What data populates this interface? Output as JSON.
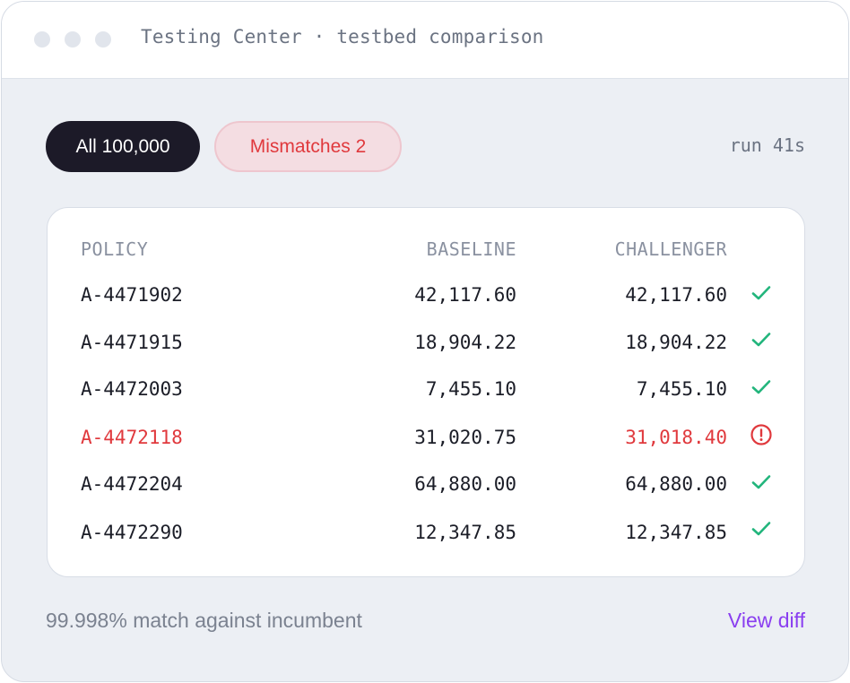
{
  "window": {
    "title": "Testing Center · testbed comparison"
  },
  "filters": {
    "all_label": "All 100,000",
    "mismatches_label": "Mismatches 2"
  },
  "run_time": "run 41s",
  "table": {
    "headers": {
      "policy": "POLICY",
      "baseline": "BASELINE",
      "challenger": "CHALLENGER"
    },
    "rows": [
      {
        "policy": "A-4471902",
        "baseline": "42,117.60",
        "challenger": "42,117.60",
        "status": "check-icon"
      },
      {
        "policy": "A-4471915",
        "baseline": "18,904.22",
        "challenger": "18,904.22",
        "status": "check-icon"
      },
      {
        "policy": "A-4472003",
        "baseline": "7,455.10",
        "challenger": "7,455.10",
        "status": "check-icon"
      },
      {
        "policy": "A-4472118",
        "baseline": "31,020.75",
        "challenger": "31,018.40",
        "status": "alert-circle-icon"
      },
      {
        "policy": "A-4472204",
        "baseline": "64,880.00",
        "challenger": "64,880.00",
        "status": "check-icon"
      },
      {
        "policy": "A-4472290",
        "baseline": "12,347.85",
        "challenger": "12,347.85",
        "status": "check-icon"
      }
    ]
  },
  "footer": {
    "match_text": "99.998% match against incumbent",
    "view_diff_label": "View diff"
  },
  "colors": {
    "match": "#22b57c",
    "mismatch": "#e0393d",
    "accent": "#8a3ff0",
    "dark_pill": "#1c1a28"
  }
}
